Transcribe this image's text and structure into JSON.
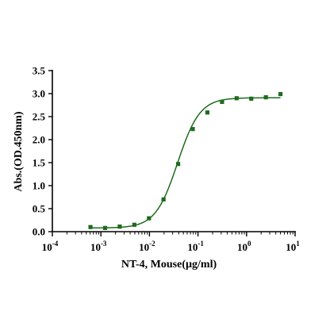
{
  "chart_data": {
    "type": "scatter",
    "title": "",
    "xlabel": "NT-4, Mouse(µg/ml)",
    "ylabel": "Abs.(OD.450nm)",
    "x_scale": "log",
    "xlim": [
      0.0001,
      10
    ],
    "ylim": [
      0,
      3.5
    ],
    "x_ticks": [
      {
        "base": "10",
        "exp": "-4",
        "value": 0.0001
      },
      {
        "base": "10",
        "exp": "-3",
        "value": 0.001
      },
      {
        "base": "10",
        "exp": "-2",
        "value": 0.01
      },
      {
        "base": "10",
        "exp": "-1",
        "value": 0.1
      },
      {
        "base": "10",
        "exp": "0",
        "value": 1
      },
      {
        "base": "10",
        "exp": "1",
        "value": 10
      }
    ],
    "y_ticks": [
      "0.0",
      "0.5",
      "1.0",
      "1.5",
      "2.0",
      "2.5",
      "3.0",
      "3.5"
    ],
    "grid": false,
    "legend": "none",
    "color": "#1e6b1e",
    "series": [
      {
        "marker": "square",
        "x": [
          0.00061,
          0.00122,
          0.00244,
          0.00488,
          0.00977,
          0.0195,
          0.039,
          0.078,
          0.156,
          0.3125,
          0.625,
          1.25,
          2.5,
          5
        ],
        "y": [
          0.1,
          0.08,
          0.11,
          0.15,
          0.29,
          0.7,
          1.47,
          2.23,
          2.59,
          2.82,
          2.9,
          2.89,
          2.92,
          2.99
        ]
      }
    ],
    "fit_curve": {
      "type": "4PL",
      "bottom": 0.08,
      "top": 2.91,
      "ec50": 0.038,
      "hill": 1.9
    }
  }
}
